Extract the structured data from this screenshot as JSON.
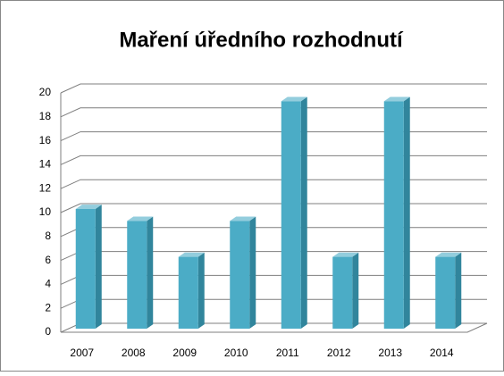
{
  "chart_data": {
    "type": "bar",
    "title": "Maření úředního rozhodnutí",
    "categories": [
      "2007",
      "2008",
      "2009",
      "2010",
      "2011",
      "2012",
      "2013",
      "2014"
    ],
    "values": [
      10,
      9,
      6,
      9,
      19,
      6,
      19,
      6
    ],
    "color": "#4bacc6",
    "ylim": [
      0,
      20
    ],
    "yticks": [
      0,
      2,
      4,
      6,
      8,
      10,
      12,
      14,
      16,
      18,
      20
    ],
    "grid": true
  }
}
